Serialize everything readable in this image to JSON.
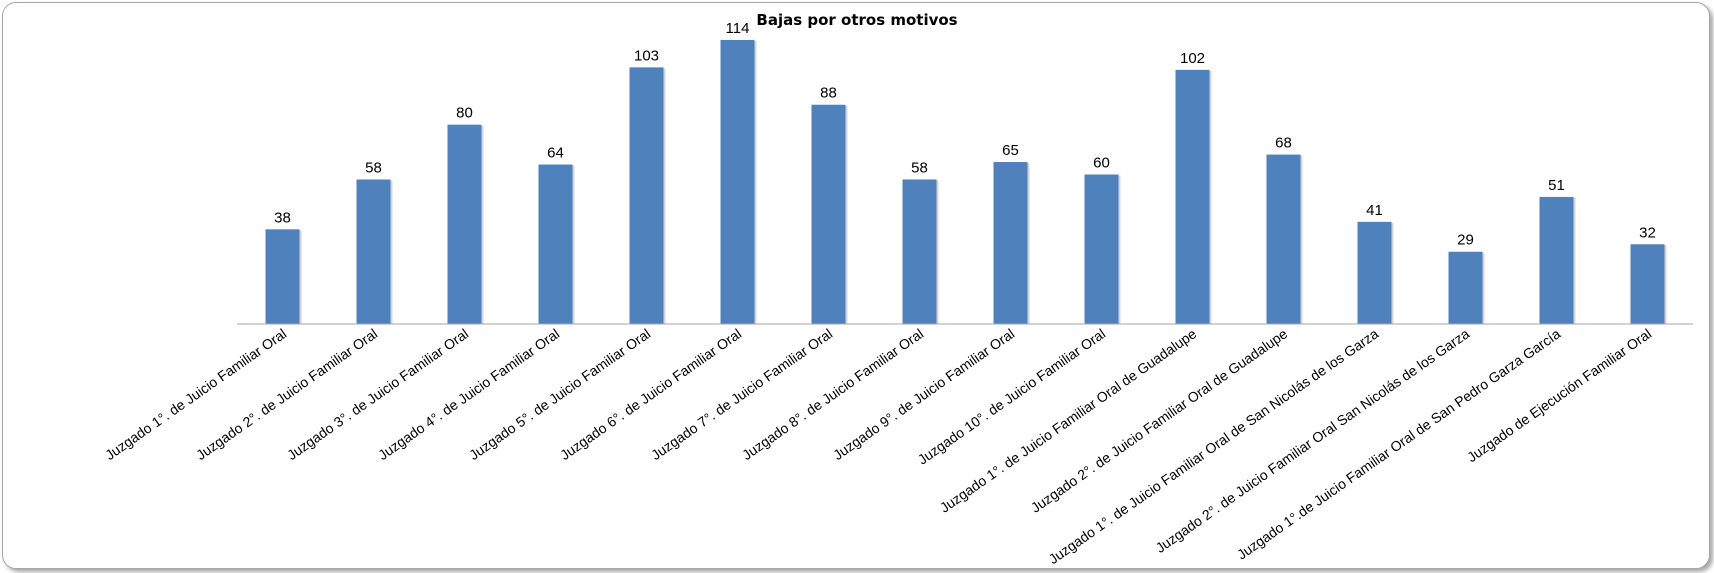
{
  "chart_data": {
    "type": "bar",
    "title": "Bajas por otros motivos",
    "categories": [
      "Juzgado 1°. de Juicio Familiar Oral",
      "Juzgado 2°. de Juicio Familiar Oral",
      "Juzgado 3°. de Juicio Familiar Oral",
      "Juzgado 4°. de Juicio Familiar Oral",
      "Juzgado 5°. de Juicio Familiar Oral",
      "Juzgado 6°. de Juicio Familiar Oral",
      "Juzgado 7°. de Juicio Familiar Oral",
      "Juzgado 8°. de Juicio Familiar Oral",
      "Juzgado 9°. de Juicio Familiar Oral",
      "Juzgado 10°. de Juicio Familiar Oral",
      "Juzgado 1°. de Juicio Familiar Oral de Guadalupe",
      "Juzgado 2°. de Juicio Familiar Oral de Guadalupe",
      "Juzgado 1°. de Juicio Familiar Oral de San Nicolás de los Garza",
      "Juzgado 2°. de Juicio Familiar Oral San Nicolás de los Garza",
      "Juzgado 1°.de Juicio Familiar Oral de San Pedro Garza García",
      "Juzgado de Ejecución Familiar Oral"
    ],
    "values": [
      38,
      58,
      80,
      64,
      103,
      114,
      88,
      58,
      65,
      60,
      102,
      68,
      41,
      29,
      51,
      32
    ],
    "ylim": [
      0,
      120
    ],
    "grid": false,
    "legend": "none",
    "bar_color": "#4F81BD"
  }
}
